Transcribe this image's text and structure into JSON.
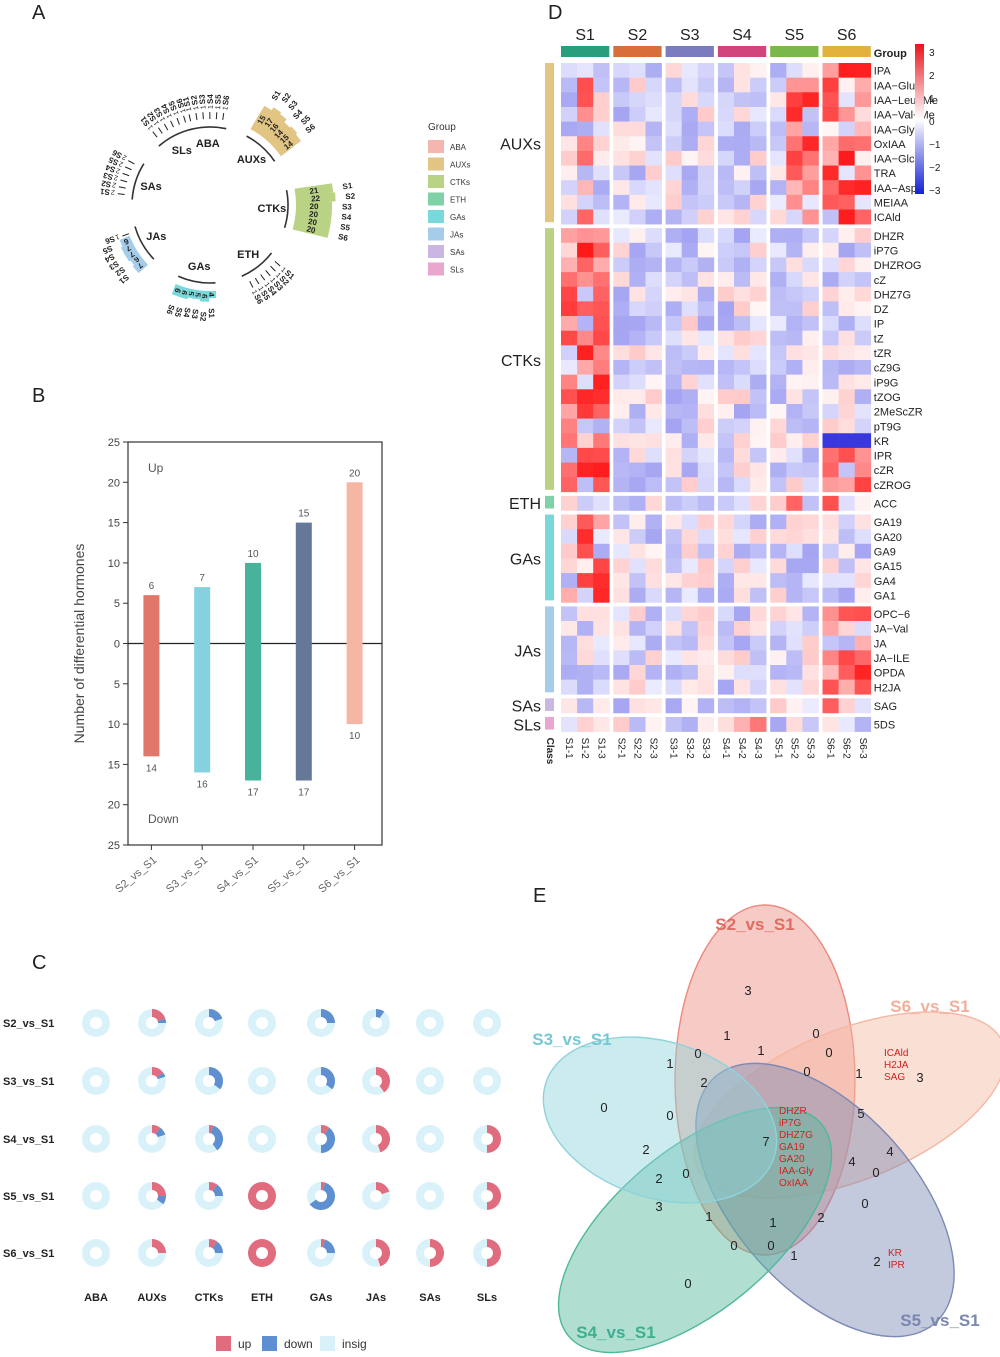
{
  "panels": {
    "a": "A",
    "b": "B",
    "c": "C",
    "d": "D",
    "e": "E"
  },
  "samples": [
    "S1",
    "S2",
    "S3",
    "S4",
    "S5",
    "S6"
  ],
  "colors": {
    "up": "#e06c7d",
    "down": "#5d8fd1",
    "insig": "#d9f1f9",
    "groups": {
      "ABA": "#f4b6ae",
      "AUXs": "#e2c483",
      "CTKs": "#b9d284",
      "ETH": "#7fd2a7",
      "GAs": "#79d8d9",
      "JAs": "#a5cdea",
      "SAs": "#cab6e0",
      "SLs": "#e9a7cf"
    },
    "sampleBars": [
      "#2a9d7c",
      "#d86f3a",
      "#7b7bbf",
      "#d2447c",
      "#7bb84b",
      "#e3b23c"
    ]
  },
  "panelA": {
    "legend_title": "Group",
    "legend": [
      "ABA",
      "AUXs",
      "CTKs",
      "ETH",
      "GAs",
      "JAs",
      "SAs",
      "SLs"
    ],
    "sectors": [
      {
        "name": "ABA",
        "counts": [
          1,
          1,
          1,
          1,
          1,
          1
        ]
      },
      {
        "name": "AUXs",
        "counts": [
          15,
          17,
          16,
          14,
          15,
          14
        ]
      },
      {
        "name": "CTKs",
        "counts": [
          21,
          22,
          20,
          20,
          20,
          20
        ]
      },
      {
        "name": "ETH",
        "counts": [
          1,
          1,
          1,
          1,
          1,
          1
        ]
      },
      {
        "name": "GAs",
        "counts": [
          4,
          6,
          5,
          5,
          6,
          6
        ]
      },
      {
        "name": "JAs",
        "counts": [
          7,
          6,
          7,
          7,
          6,
          1
        ]
      },
      {
        "name": "SAs",
        "counts": [
          2,
          2,
          2,
          2,
          2,
          2
        ]
      },
      {
        "name": "SLs",
        "counts": [
          1,
          1,
          1,
          1,
          1,
          1
        ]
      }
    ]
  },
  "chart_data": [
    {
      "type": "bar",
      "title": "",
      "ylabel": "Number of differential hormones",
      "categories": [
        "S2_vs_S1",
        "S3_vs_S1",
        "S4_vs_S1",
        "S5_vs_S1",
        "S6_vs_S1"
      ],
      "series": [
        {
          "name": "Up",
          "values": [
            6,
            7,
            10,
            15,
            20
          ]
        },
        {
          "name": "Down",
          "values": [
            14,
            16,
            17,
            17,
            10
          ]
        }
      ],
      "yticks": [
        "25",
        "20",
        "15",
        "10",
        "5",
        "0",
        "5",
        "10",
        "15",
        "20",
        "25"
      ],
      "ylim": [
        -25,
        25
      ],
      "annotations": [
        "Up",
        "Down"
      ],
      "bar_colors": [
        "#e0776a",
        "#86d1df",
        "#47b39a",
        "#667898",
        "#f5b6a6"
      ]
    },
    {
      "type": "pie-grid",
      "rows": [
        "S2_vs_S1",
        "S3_vs_S1",
        "S4_vs_S1",
        "S5_vs_S1",
        "S6_vs_S1"
      ],
      "columns": [
        "ABA",
        "AUXs",
        "CTKs",
        "ETH",
        "GAs",
        "JAs",
        "SAs",
        "SLs"
      ],
      "legend": [
        "up",
        "down",
        "insig"
      ],
      "cells": [
        [
          [
            0,
            0,
            1
          ],
          [
            0.2,
            0.05,
            0.75
          ],
          [
            0,
            0.2,
            0.8
          ],
          [
            0,
            0,
            1
          ],
          [
            0,
            0.25,
            0.75
          ],
          [
            0,
            0.1,
            0.9
          ],
          [
            0,
            0,
            1
          ],
          [
            0,
            0,
            1
          ]
        ],
        [
          [
            0,
            0,
            1
          ],
          [
            0.15,
            0.05,
            0.8
          ],
          [
            0,
            0.35,
            0.65
          ],
          [
            0,
            0,
            1
          ],
          [
            0,
            0.35,
            0.65
          ],
          [
            0.4,
            0,
            0.6
          ],
          [
            0,
            0,
            1
          ],
          [
            0,
            0,
            1
          ]
        ],
        [
          [
            0,
            0,
            1
          ],
          [
            0.1,
            0.1,
            0.8
          ],
          [
            0.05,
            0.35,
            0.6
          ],
          [
            0,
            0,
            1
          ],
          [
            0.1,
            0.4,
            0.5
          ],
          [
            0.45,
            0,
            0.55
          ],
          [
            0,
            0,
            1
          ],
          [
            0.5,
            0,
            0.5
          ]
        ],
        [
          [
            0,
            0,
            1
          ],
          [
            0.25,
            0.1,
            0.65
          ],
          [
            0.1,
            0.15,
            0.75
          ],
          [
            1,
            0,
            0
          ],
          [
            0.05,
            0.6,
            0.35
          ],
          [
            0.2,
            0,
            0.8
          ],
          [
            0,
            0,
            1
          ],
          [
            0.5,
            0,
            0.5
          ]
        ],
        [
          [
            0,
            0,
            1
          ],
          [
            0.25,
            0,
            0.75
          ],
          [
            0.1,
            0.15,
            0.75
          ],
          [
            1,
            0,
            0
          ],
          [
            0.05,
            0.2,
            0.75
          ],
          [
            0.45,
            0,
            0.55
          ],
          [
            0.5,
            0,
            0.5
          ],
          [
            0.5,
            0,
            0.5
          ]
        ]
      ]
    },
    {
      "type": "heatmap",
      "columns": [
        "S1-1",
        "S1-2",
        "S1-3",
        "S2-1",
        "S2-2",
        "S2-3",
        "S3-1",
        "S3-2",
        "S3-3",
        "S4-1",
        "S4-2",
        "S4-3",
        "S5-1",
        "S5-2",
        "S5-3",
        "S6-1",
        "S6-2",
        "S6-3"
      ],
      "column_groups": [
        "S1",
        "S2",
        "S3",
        "S4",
        "S5",
        "S6"
      ],
      "group_header": "Group",
      "class_label": "Class",
      "scale": {
        "min": -3,
        "max": 3,
        "ticks": [
          "3",
          "2",
          "1",
          "0",
          "−1",
          "−2",
          "−3"
        ]
      },
      "classes": [
        {
          "name": "AUXs",
          "rows": [
            "IPA",
            "IAA−Glu",
            "IAA−Leu−Me",
            "IAA−Val−Me",
            "IAA−Gly",
            "OxIAA",
            "IAA−Glc",
            "TRA",
            "IAA−Asp",
            "MEIAA",
            "ICAld"
          ]
        },
        {
          "name": "CTKs",
          "rows": [
            "DHZR",
            "iP7G",
            "DHZROG",
            "cZ",
            "DHZ7G",
            "DZ",
            "IP",
            "tZ",
            "tZR",
            "cZ9G",
            "iP9G",
            "tZOG",
            "2MeScZR",
            "pT9G",
            "KR",
            "IPR",
            "cZR",
            "cZROG"
          ]
        },
        {
          "name": "ETH",
          "rows": [
            "ACC"
          ]
        },
        {
          "name": "GAs",
          "rows": [
            "GA19",
            "GA20",
            "GA9",
            "GA15",
            "GA4",
            "GA1"
          ]
        },
        {
          "name": "JAs",
          "rows": [
            "OPC−6",
            "JA−Val",
            "JA",
            "JA−ILE",
            "OPDA",
            "H2JA"
          ]
        },
        {
          "name": "SAs",
          "rows": [
            "SAG"
          ]
        },
        {
          "name": "SLs",
          "rows": [
            "5DS"
          ]
        }
      ]
    },
    {
      "type": "venn",
      "sets": [
        "S2_vs_S1",
        "S6_vs_S1",
        "S5_vs_S1",
        "S4_vs_S1",
        "S3_vs_S1"
      ],
      "numbers": [
        "3",
        "0",
        "0",
        "1",
        "1",
        "1",
        "0",
        "2",
        "0",
        "1",
        "3",
        "5",
        "0",
        "7",
        "4",
        "4",
        "0",
        "2",
        "0",
        "2",
        "1",
        "1",
        "2",
        "3",
        "0",
        "0",
        "0",
        "1",
        "2",
        "0",
        "0"
      ],
      "labels": {
        "s6_only": [
          "ICAld",
          "H2JA",
          "SAG"
        ],
        "core": [
          "DHZR",
          "iP7G",
          "DHZ7G",
          "GA19",
          "GA20",
          "IAA-Gly",
          "OxIAA"
        ],
        "s5_only": [
          "KR",
          "IPR"
        ]
      }
    }
  ],
  "legendC": {
    "up": "up",
    "down": "down",
    "insig": "insig"
  }
}
